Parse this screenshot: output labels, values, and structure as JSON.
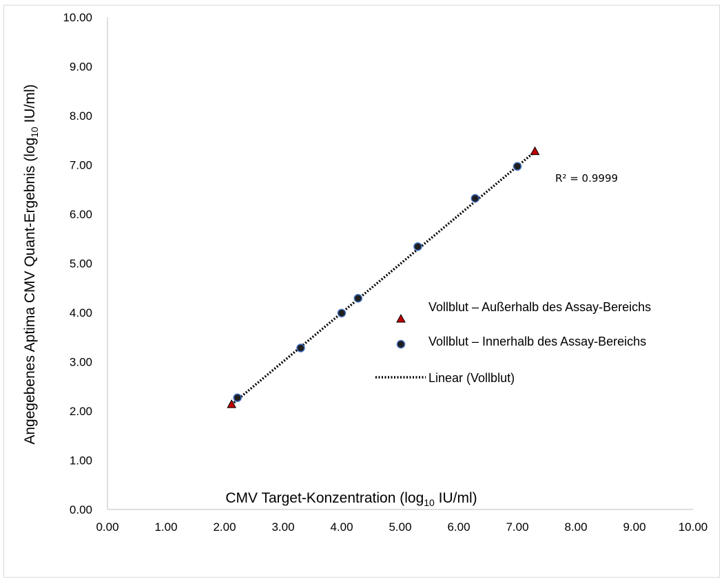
{
  "chart_data": {
    "type": "scatter",
    "xlabel_main": "CMV Target-Konzentration (log",
    "xlabel_sub": "10",
    "xlabel_end": " IU/ml)",
    "ylabel_main": "Angegebenes Aptima CMV Quant-Ergebnis (log",
    "ylabel_sub": "10",
    "ylabel_end": " IU/ml)",
    "xlim": [
      0,
      10
    ],
    "ylim": [
      0,
      10
    ],
    "xticks": [
      "0.00",
      "1.00",
      "2.00",
      "3.00",
      "4.00",
      "5.00",
      "6.00",
      "7.00",
      "8.00",
      "9.00",
      "10.00"
    ],
    "yticks": [
      "0.00",
      "1.00",
      "2.00",
      "3.00",
      "4.00",
      "5.00",
      "6.00",
      "7.00",
      "8.00",
      "9.00",
      "10.00"
    ],
    "grid": false,
    "legend_position": "right",
    "series": [
      {
        "name": "Vollblut – Außerhalb des Assay-Bereichs",
        "marker": "triangle",
        "color": "#c00000",
        "x": [
          2.12,
          7.3
        ],
        "y": [
          2.13,
          7.27
        ]
      },
      {
        "name": "Vollblut – Innerhalb des Assay-Bereichs",
        "marker": "circle",
        "color": "#1f1f1f",
        "edge": "#4472c4",
        "x": [
          2.22,
          3.3,
          4.0,
          4.28,
          5.3,
          6.28,
          7.0
        ],
        "y": [
          2.27,
          3.28,
          3.99,
          4.29,
          5.34,
          6.32,
          6.97
        ]
      },
      {
        "name": "Linear (Vollblut)",
        "type": "trendline",
        "style": "dotted",
        "color": "#000000",
        "x": [
          2.12,
          7.3
        ],
        "y": [
          2.13,
          7.27
        ]
      }
    ],
    "annotation": "R² = 0.9999"
  }
}
